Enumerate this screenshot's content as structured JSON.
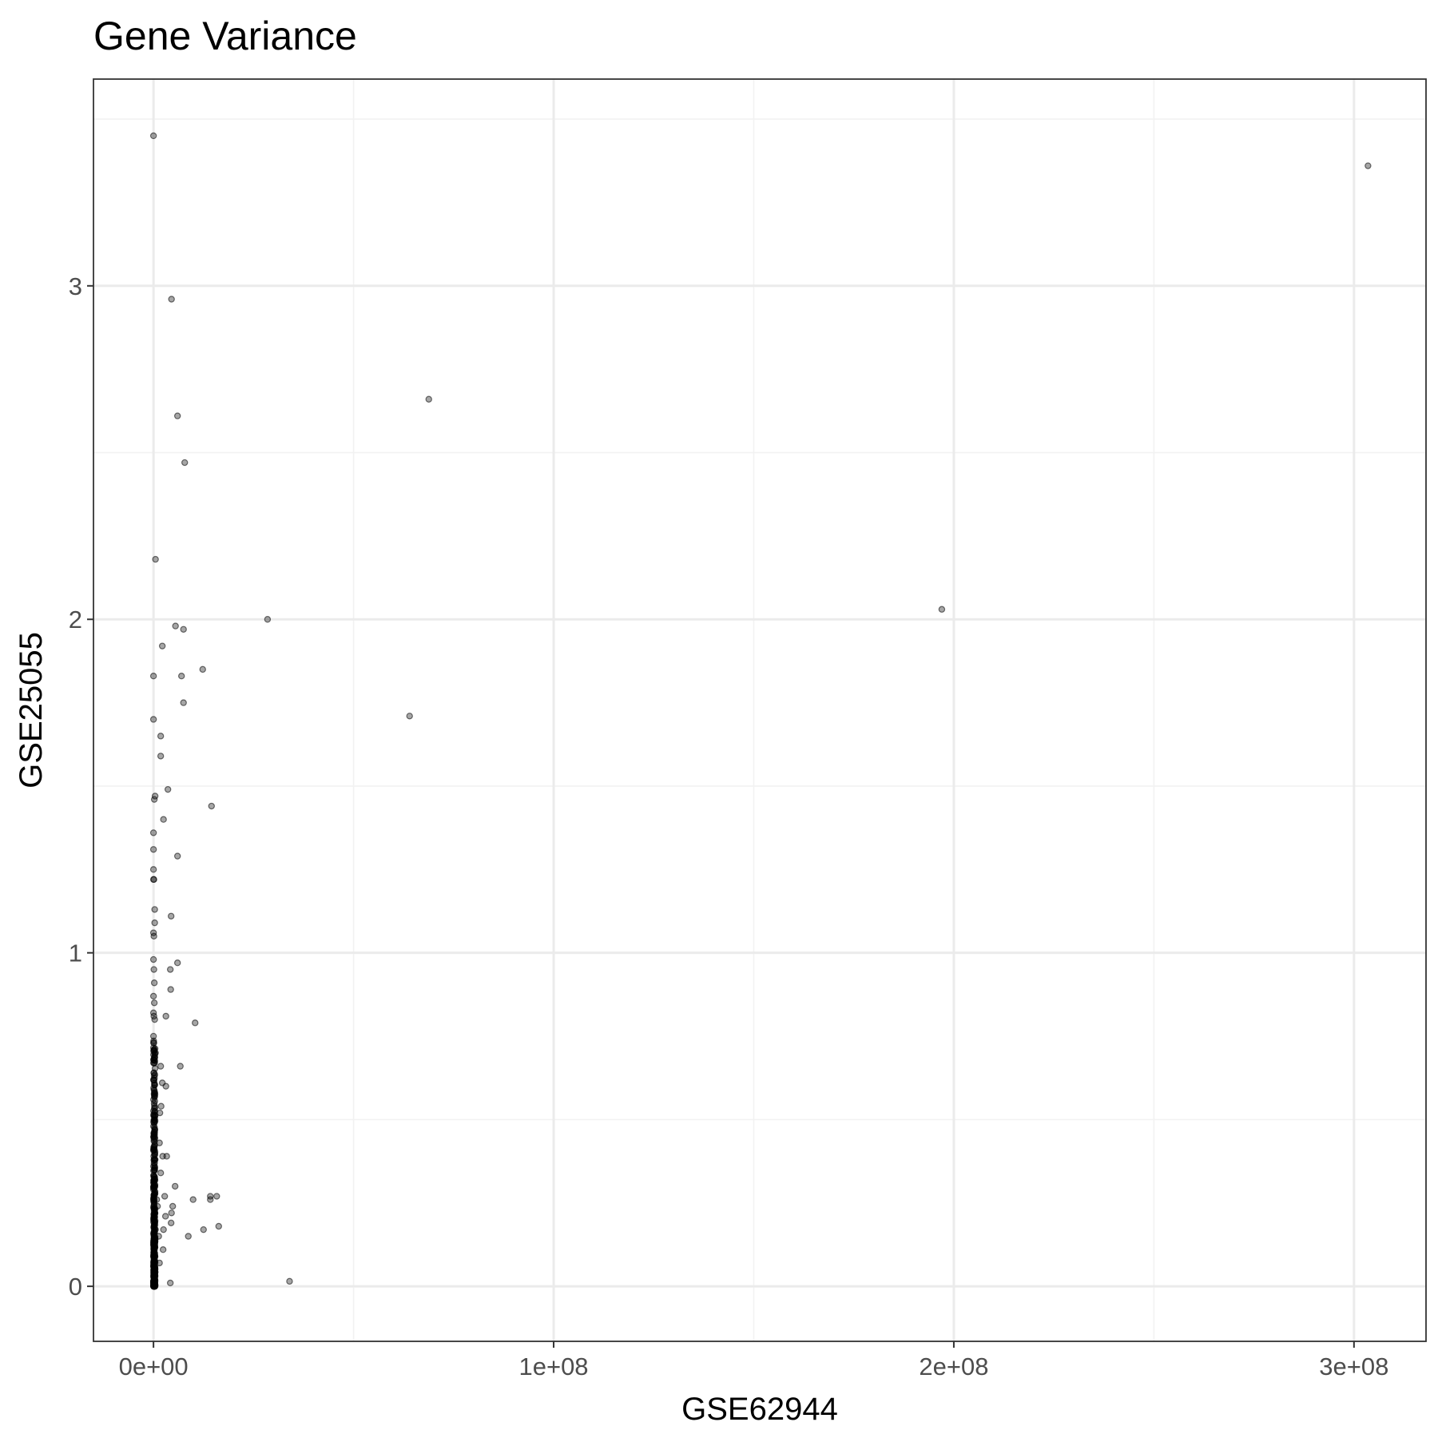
{
  "chart_data": {
    "type": "scatter",
    "title": "Gene Variance",
    "xlabel": "GSE62944",
    "ylabel": "GSE25055",
    "xlim": [
      -15000000,
      318000000
    ],
    "ylim": [
      -0.165,
      3.62
    ],
    "x_ticks": [
      {
        "value": 0,
        "label": "0e+00"
      },
      {
        "value": 100000000,
        "label": "1e+08"
      },
      {
        "value": 200000000,
        "label": "2e+08"
      },
      {
        "value": 300000000,
        "label": "3e+08"
      }
    ],
    "y_ticks": [
      {
        "value": 0,
        "label": "0"
      },
      {
        "value": 1,
        "label": "1"
      },
      {
        "value": 2,
        "label": "2"
      },
      {
        "value": 3,
        "label": "3"
      }
    ],
    "grid": true,
    "legend": "none",
    "point_color": "#000000",
    "point_alpha": 0.35,
    "series": [
      {
        "points": [
          [
            0,
            3.45
          ],
          [
            303500000,
            3.36
          ],
          [
            4500000,
            2.96
          ],
          [
            68800000,
            2.66
          ],
          [
            6000000,
            2.61
          ],
          [
            7800000,
            2.47
          ],
          [
            500000,
            2.18
          ],
          [
            28500000,
            2.0
          ],
          [
            197000000,
            2.03
          ],
          [
            5500000,
            1.98
          ],
          [
            7500000,
            1.97
          ],
          [
            2200000,
            1.92
          ],
          [
            0,
            1.83
          ],
          [
            7000000,
            1.83
          ],
          [
            12300000,
            1.85
          ],
          [
            7500000,
            1.75
          ],
          [
            0,
            1.7
          ],
          [
            64000000,
            1.71
          ],
          [
            1800000,
            1.65
          ],
          [
            1800000,
            1.59
          ],
          [
            3600000,
            1.49
          ],
          [
            400000,
            1.47
          ],
          [
            200000,
            1.46
          ],
          [
            14500000,
            1.44
          ],
          [
            2500000,
            1.4
          ],
          [
            0,
            1.36
          ],
          [
            0,
            1.31
          ],
          [
            6000000,
            1.29
          ],
          [
            0,
            1.25
          ],
          [
            0,
            1.22
          ],
          [
            100000,
            1.22
          ],
          [
            300000,
            1.13
          ],
          [
            4400000,
            1.11
          ],
          [
            300000,
            1.09
          ],
          [
            0,
            1.06
          ],
          [
            100000,
            1.05
          ],
          [
            6000000,
            0.97
          ],
          [
            4200000,
            0.95
          ],
          [
            0,
            0.98
          ],
          [
            100000,
            0.95
          ],
          [
            200000,
            0.91
          ],
          [
            4300000,
            0.89
          ],
          [
            0,
            0.87
          ],
          [
            200000,
            0.85
          ],
          [
            0,
            0.82
          ],
          [
            100000,
            0.81
          ],
          [
            300000,
            0.8
          ],
          [
            3100000,
            0.81
          ],
          [
            10400000,
            0.79
          ],
          [
            0,
            0.75
          ],
          [
            100000,
            0.73
          ],
          [
            200000,
            0.71
          ],
          [
            500000,
            0.7
          ],
          [
            0,
            0.68
          ],
          [
            1800000,
            0.66
          ],
          [
            6700000,
            0.66
          ],
          [
            100000,
            0.64
          ],
          [
            0,
            0.62
          ],
          [
            2200000,
            0.61
          ],
          [
            3100000,
            0.6
          ],
          [
            300000,
            0.58
          ],
          [
            0,
            0.56
          ],
          [
            1900000,
            0.54
          ],
          [
            1600000,
            0.52
          ],
          [
            200000,
            0.5
          ],
          [
            0,
            0.48
          ],
          [
            100000,
            0.45
          ],
          [
            1500000,
            0.43
          ],
          [
            0,
            0.41
          ],
          [
            2300000,
            0.39
          ],
          [
            3300000,
            0.39
          ],
          [
            400000,
            0.38
          ],
          [
            0,
            0.36
          ],
          [
            1800000,
            0.34
          ],
          [
            200000,
            0.32
          ],
          [
            5400000,
            0.3
          ],
          [
            0,
            0.29
          ],
          [
            2800000,
            0.27
          ],
          [
            14200000,
            0.27
          ],
          [
            15800000,
            0.27
          ],
          [
            800000,
            0.26
          ],
          [
            9900000,
            0.26
          ],
          [
            14200000,
            0.26
          ],
          [
            1000000,
            0.24
          ],
          [
            4800000,
            0.24
          ],
          [
            300000,
            0.22
          ],
          [
            3000000,
            0.21
          ],
          [
            4500000,
            0.22
          ],
          [
            0,
            0.2
          ],
          [
            4400000,
            0.19
          ],
          [
            16300000,
            0.18
          ],
          [
            500000,
            0.17
          ],
          [
            2500000,
            0.17
          ],
          [
            12500000,
            0.17
          ],
          [
            1300000,
            0.15
          ],
          [
            8700000,
            0.15
          ],
          [
            0,
            0.13
          ],
          [
            200000,
            0.12
          ],
          [
            2400000,
            0.11
          ],
          [
            0,
            0.09
          ],
          [
            1500000,
            0.07
          ],
          [
            0,
            0.06
          ],
          [
            200000,
            0.04
          ],
          [
            0,
            0.03
          ],
          [
            4200000,
            0.01
          ],
          [
            34000000,
            0.015
          ],
          [
            0,
            0.01
          ],
          [
            100000,
            0.0
          ],
          [
            0,
            0.0
          ]
        ]
      }
    ]
  }
}
